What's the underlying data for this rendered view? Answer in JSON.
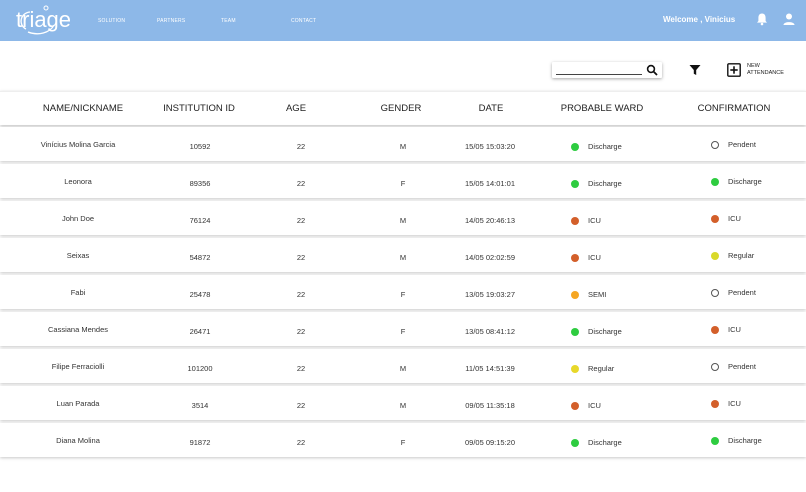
{
  "header": {
    "logo_text": "triage",
    "nav": [
      "SOLUTION",
      "PARTNERS",
      "TEAM",
      "CONTACT"
    ],
    "welcome": "Welcome , Vinicius",
    "bell_icon": "bell-icon",
    "user_icon": "user-icon"
  },
  "toolbar": {
    "search_value": "",
    "search_icon": "search-icon",
    "filter_icon": "filter-icon",
    "new_line1": "NEW",
    "new_line2": "ATTENDANCE"
  },
  "table": {
    "columns": [
      "NAME/NICKNAME",
      "INSTITUTION ID",
      "AGE",
      "GENDER",
      "DATE",
      "PROBABLE WARD",
      "CONFIRMATION"
    ],
    "rows": [
      {
        "name": "Vinícius Molina Garcia",
        "id": "10592",
        "age": "22",
        "gender": "M",
        "date": "15/05 15:03:20",
        "ward": "Discharge",
        "ward_color": "#2ecc40",
        "confirmation": "Pendent",
        "conf_color": "none"
      },
      {
        "name": "Leonora",
        "id": "89356",
        "age": "22",
        "gender": "F",
        "date": "15/05 14:01:01",
        "ward": "Discharge",
        "ward_color": "#2ecc40",
        "confirmation": "Discharge",
        "conf_color": "#2ecc40"
      },
      {
        "name": "John Doe",
        "id": "76124",
        "age": "22",
        "gender": "M",
        "date": "14/05 20:46:13",
        "ward": "ICU",
        "ward_color": "#d35f2a",
        "confirmation": "ICU",
        "conf_color": "#d35f2a"
      },
      {
        "name": "Seixas",
        "id": "54872",
        "age": "22",
        "gender": "M",
        "date": "14/05 02:02:59",
        "ward": "ICU",
        "ward_color": "#d35f2a",
        "confirmation": "Regular",
        "conf_color": "#d9d92a"
      },
      {
        "name": "Fabi",
        "id": "25478",
        "age": "22",
        "gender": "F",
        "date": "13/05 19:03:27",
        "ward": "SEMI",
        "ward_color": "#f5a623",
        "confirmation": "Pendent",
        "conf_color": "none"
      },
      {
        "name": "Cassiana Mendes",
        "id": "26471",
        "age": "22",
        "gender": "F",
        "date": "13/05 08:41:12",
        "ward": "Discharge",
        "ward_color": "#2ecc40",
        "confirmation": "ICU",
        "conf_color": "#d35f2a"
      },
      {
        "name": "Filipe Ferraciolli",
        "id": "101200",
        "age": "22",
        "gender": "M",
        "date": "11/05 14:51:39",
        "ward": "Regular",
        "ward_color": "#e8d82a",
        "confirmation": "Pendent",
        "conf_color": "none"
      },
      {
        "name": "Luan Parada",
        "id": "3514",
        "age": "22",
        "gender": "M",
        "date": "09/05 11:35:18",
        "ward": "ICU",
        "ward_color": "#d35f2a",
        "confirmation": "ICU",
        "conf_color": "#d35f2a"
      },
      {
        "name": "Diana Molina",
        "id": "91872",
        "age": "22",
        "gender": "F",
        "date": "09/05 09:15:20",
        "ward": "Discharge",
        "ward_color": "#2ecc40",
        "confirmation": "Discharge",
        "conf_color": "#2ecc40"
      }
    ]
  }
}
